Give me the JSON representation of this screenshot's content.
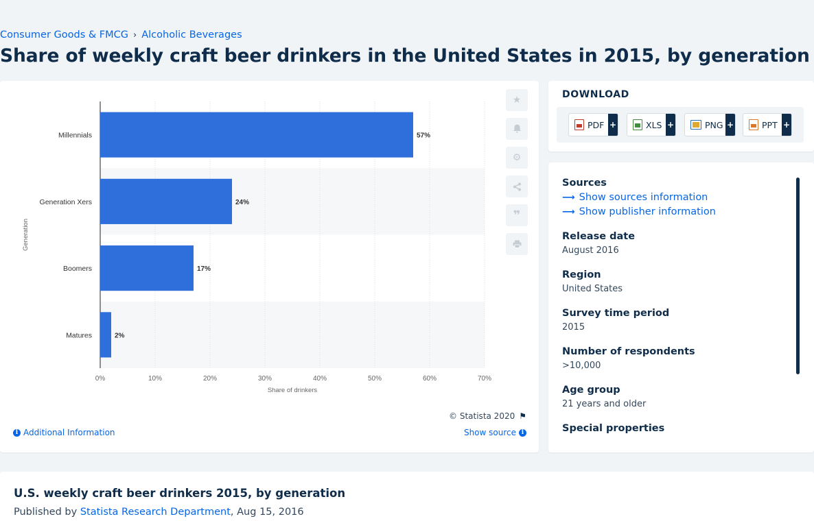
{
  "breadcrumb": {
    "items": [
      "Consumer Goods & FMCG",
      "Alcoholic Beverages"
    ],
    "separator": "›"
  },
  "page_title": "Share of weekly craft beer drinkers in the United States in 2015, by generation",
  "chart_data": {
    "type": "bar",
    "orientation": "horizontal",
    "categories": [
      "Millennials",
      "Generation Xers",
      "Boomers",
      "Matures"
    ],
    "values": [
      57,
      24,
      17,
      2
    ],
    "value_labels": [
      "57%",
      "24%",
      "17%",
      "2%"
    ],
    "xlabel": "Share of drinkers",
    "ylabel": "Generation",
    "xlim": [
      0,
      70
    ],
    "xticks": [
      "0%",
      "10%",
      "20%",
      "30%",
      "40%",
      "50%",
      "60%",
      "70%"
    ],
    "grid": true,
    "bar_color": "#2f6fdb"
  },
  "chart_tools": [
    "star-icon",
    "bell-icon",
    "gear-icon",
    "share-icon",
    "quote-icon",
    "print-icon"
  ],
  "chart_footer": {
    "copyright": "© Statista 2020",
    "additional_info": "Additional Information",
    "show_source": "Show source"
  },
  "download": {
    "title": "DOWNLOAD",
    "buttons": [
      {
        "label": "PDF",
        "icon": "pdf-file-icon"
      },
      {
        "label": "XLS",
        "icon": "xls-file-icon"
      },
      {
        "label": "PNG",
        "icon": "png-file-icon"
      },
      {
        "label": "PPT",
        "icon": "ppt-file-icon"
      }
    ],
    "plus": "+"
  },
  "meta": {
    "sources_title": "Sources",
    "show_sources": "Show sources information",
    "show_publisher": "Show publisher information",
    "fields": [
      {
        "label": "Release date",
        "value": "August 2016"
      },
      {
        "label": "Region",
        "value": "United States"
      },
      {
        "label": "Survey time period",
        "value": "2015"
      },
      {
        "label": "Number of respondents",
        "value": ">10,000"
      },
      {
        "label": "Age group",
        "value": "21 years and older"
      },
      {
        "label": "Special properties",
        "value": ""
      }
    ]
  },
  "bottom": {
    "title": "U.S. weekly craft beer drinkers 2015, by generation",
    "published_by_prefix": "Published by",
    "publisher": "Statista Research Department",
    "date": ", Aug 15, 2016"
  },
  "colors": {
    "accent": "#0666e5",
    "text_dark": "#0f2d4a",
    "bar": "#2f6fdb"
  }
}
